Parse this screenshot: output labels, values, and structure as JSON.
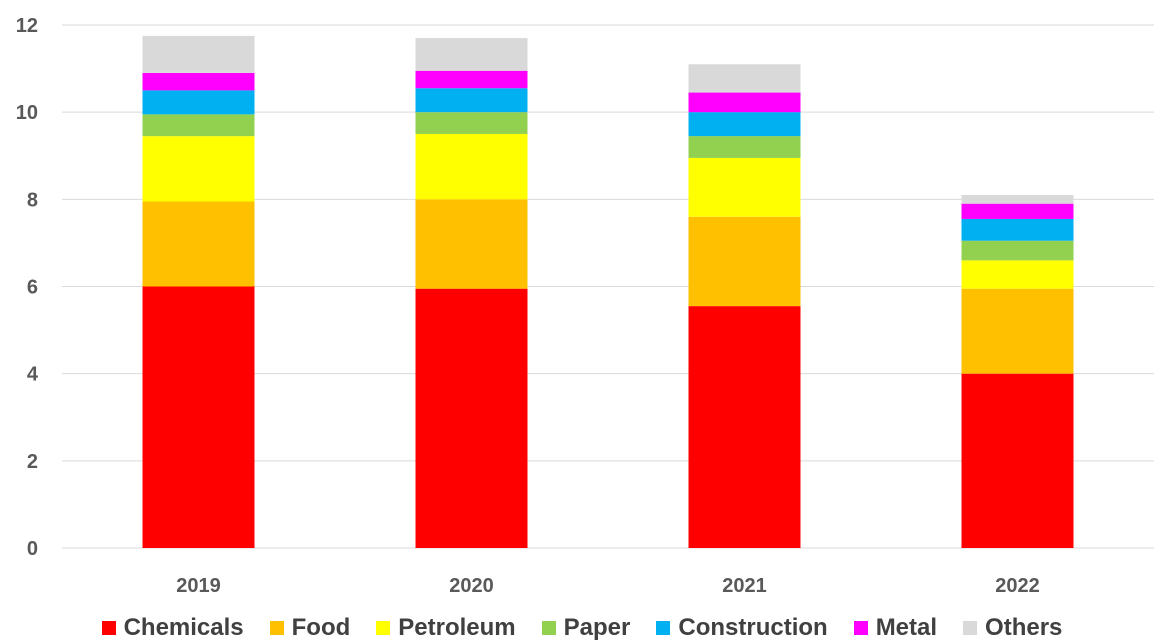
{
  "chart_data": {
    "type": "bar",
    "stacked": true,
    "categories": [
      "2019",
      "2020",
      "2021",
      "2022"
    ],
    "ylim": [
      0,
      12
    ],
    "yticks": [
      "0",
      "2",
      "4",
      "6",
      "8",
      "10",
      "12"
    ],
    "grid": true,
    "legend_position": "bottom",
    "series": [
      {
        "name": "Chemicals",
        "color": "#ff0000",
        "values": [
          6.0,
          5.95,
          5.55,
          4.0
        ]
      },
      {
        "name": "Food",
        "color": "#ffc000",
        "values": [
          1.95,
          2.05,
          2.05,
          1.95
        ]
      },
      {
        "name": "Petroleum",
        "color": "#ffff00",
        "values": [
          1.5,
          1.5,
          1.35,
          0.65
        ]
      },
      {
        "name": "Paper",
        "color": "#92d050",
        "values": [
          0.5,
          0.5,
          0.5,
          0.45
        ]
      },
      {
        "name": "Construction",
        "color": "#00b0f0",
        "values": [
          0.55,
          0.55,
          0.55,
          0.5
        ]
      },
      {
        "name": "Metal",
        "color": "#ff00ff",
        "values": [
          0.4,
          0.4,
          0.45,
          0.35
        ]
      },
      {
        "name": "Others",
        "color": "#d9d9d9",
        "values": [
          0.85,
          0.75,
          0.65,
          0.2
        ]
      }
    ]
  }
}
